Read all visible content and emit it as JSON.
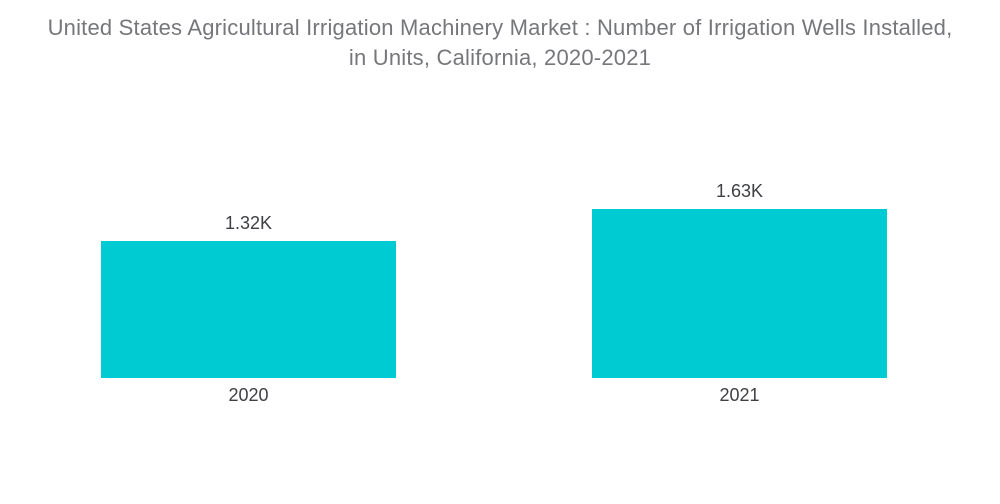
{
  "page": {
    "background_color": "#ffffff"
  },
  "chart_data": {
    "type": "bar",
    "title": "United States Agricultural Irrigation Machinery Market : Number of Irrigation Wells Installed, in Units, California, 2020-2021",
    "title_lines": [
      "United States Agricultural Irrigation Machinery Market : Number of Irrigation Wells Installed,",
      "in Units, California, 2020-2021"
    ],
    "categories": [
      "2020",
      "2021"
    ],
    "values": [
      1320,
      1630
    ],
    "value_labels": [
      "1.32K",
      "1.63K"
    ],
    "xlabel": "",
    "ylabel": "",
    "ylim": [
      0,
      1630
    ],
    "grid": false,
    "legend_visible": false,
    "axes_visible": false,
    "bar_color": "#00CBD2",
    "title_color": "#76777A",
    "label_color": "#3E4043"
  }
}
